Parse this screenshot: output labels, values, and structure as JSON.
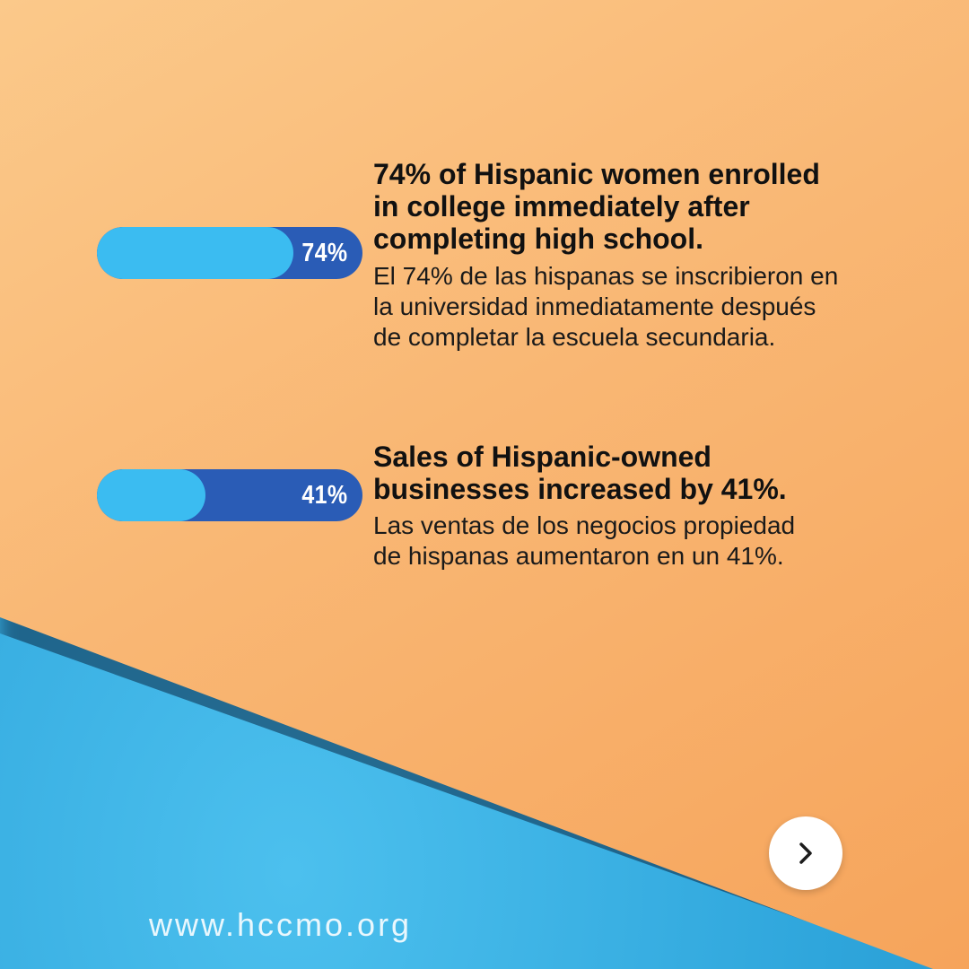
{
  "stats": [
    {
      "value": 74,
      "label": "74%",
      "title_lines": [
        "74% of Hispanic women enrolled",
        "in college immediately after",
        "completing high school."
      ],
      "desc_lines": [
        "El 74% de las hispanas se inscribieron en",
        "la universidad inmediatamente después",
        "de completar la escuela secundaria."
      ]
    },
    {
      "value": 41,
      "label": "41%",
      "title_lines": [
        "Sales of Hispanic-owned",
        "businesses increased by 41%."
      ],
      "desc_lines": [
        "Las ventas de los negocios propiedad",
        "de hispanas aumentaron en un 41%."
      ]
    }
  ],
  "colors": {
    "bar_track": "#2a5cb6",
    "bar_fill": "#3bbcf1",
    "paper": "#f9b774",
    "background": "#33aee2"
  },
  "next_button": {
    "icon": "chevron-right-icon"
  },
  "footer": {
    "website": "www.hccmo.org"
  }
}
